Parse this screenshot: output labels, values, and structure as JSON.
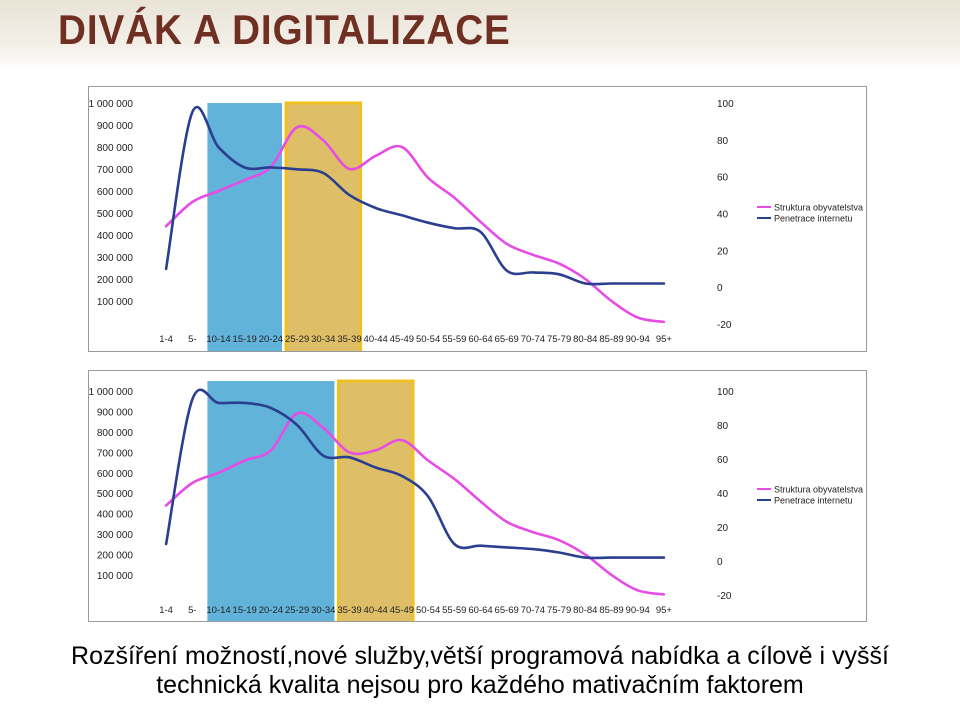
{
  "slide": {
    "title": "DIVÁK A DIGITALIZACE",
    "caption_line1": "Rozšíření možností,nové služby,větší programová nabídka a cílově i vyšší",
    "caption_line2": "technická kvalita nejsou pro každého mativačním faktorem"
  },
  "colors": {
    "title": "#6f2f22",
    "population_line": "#e64ce6",
    "internet_line": "#2a3f8f",
    "blue_highlight": "#5aafd8",
    "gold_highlight": "#d8b44e",
    "gold_border": "#f0c020"
  },
  "chart_data": [
    {
      "type": "line",
      "categories": [
        "1-4",
        "5-9",
        "10-14",
        "15-19",
        "20-24",
        "25-29",
        "30-34",
        "35-39",
        "40-44",
        "45-49",
        "50-54",
        "55-59",
        "60-64",
        "65-69",
        "70-74",
        "75-79",
        "80-84",
        "85-89",
        "90-94",
        "95+"
      ],
      "category_labels_visible": [
        "1-4",
        "5-",
        "10-14",
        "15-19",
        "20-24",
        "25-29",
        "30-34",
        "35-39",
        "40-44",
        "45-49",
        "50-54",
        "55-59",
        "60-64",
        "65-69",
        "70-74",
        "75-79",
        "80-84",
        "85-89",
        "90-94",
        "95+"
      ],
      "y_left": {
        "range": [
          0,
          1000000
        ],
        "ticks": [
          100000,
          200000,
          300000,
          400000,
          500000,
          600000,
          700000,
          800000,
          900000,
          1000000
        ],
        "tick_labels": [
          "100 000",
          "200 000",
          "300 000",
          "400 000",
          "500 000",
          "600 000",
          "700 000",
          "800 000",
          "900 000",
          "1 000 000"
        ]
      },
      "y_right": {
        "range": [
          -20,
          100
        ],
        "ticks": [
          -20,
          0,
          20,
          40,
          60,
          80,
          100
        ],
        "tick_labels": [
          "-20",
          "0",
          "20",
          "40",
          "60",
          "80",
          "100"
        ]
      },
      "legend": [
        "Struktura obyvatelstva",
        "Penetrace internetu"
      ],
      "legend_position": "right",
      "highlights": [
        {
          "from_category": "10-14",
          "to_category": "20-24",
          "color": "blue"
        },
        {
          "from_category": "25-29",
          "to_category": "35-39",
          "color": "gold"
        }
      ],
      "series": [
        {
          "name": "Struktura obyvatelstva",
          "axis": "left",
          "color": "#e64ce6",
          "values": [
            440000,
            550000,
            600000,
            650000,
            710000,
            890000,
            830000,
            700000,
            760000,
            800000,
            660000,
            570000,
            460000,
            360000,
            310000,
            270000,
            200000,
            100000,
            25000,
            5000
          ]
        },
        {
          "name": "Penetrace internetu",
          "axis": "right",
          "color": "#2a3f8f",
          "values": [
            10,
            95,
            76,
            65,
            65,
            64,
            62,
            50,
            43,
            39,
            35,
            32,
            30,
            9,
            8,
            7,
            2,
            2,
            2,
            2
          ]
        }
      ]
    },
    {
      "type": "line",
      "categories": [
        "1-4",
        "5-9",
        "10-14",
        "15-19",
        "20-24",
        "25-29",
        "30-34",
        "35-39",
        "40-44",
        "45-49",
        "50-54",
        "55-59",
        "60-64",
        "65-69",
        "70-74",
        "75-79",
        "80-84",
        "85-89",
        "90-94",
        "95+"
      ],
      "category_labels_visible": [
        "1-4",
        "5-",
        "10-14",
        "15-19",
        "20-24",
        "25-29",
        "30-34",
        "35-39",
        "40-44",
        "45-49",
        "50-54",
        "55-59",
        "60-64",
        "65-69",
        "70-74",
        "75-79",
        "80-84",
        "85-89",
        "90-94",
        "95+"
      ],
      "y_left": {
        "range": [
          0,
          1000000
        ],
        "ticks": [
          100000,
          200000,
          300000,
          400000,
          500000,
          600000,
          700000,
          800000,
          900000,
          1000000
        ],
        "tick_labels": [
          "100 000",
          "200 000",
          "300 000",
          "400 000",
          "500 000",
          "600 000",
          "700 000",
          "800 000",
          "900 000",
          "1 000 000"
        ]
      },
      "y_right": {
        "range": [
          -20,
          100
        ],
        "ticks": [
          -20,
          0,
          20,
          40,
          60,
          80,
          100
        ],
        "tick_labels": [
          "-20",
          "0",
          "20",
          "40",
          "60",
          "80",
          "100"
        ]
      },
      "legend": [
        "Struktura obyvatelstva",
        "Penetrace internetu"
      ],
      "legend_position": "right",
      "highlights": [
        {
          "from_category": "10-14",
          "to_category": "30-34",
          "color": "blue"
        },
        {
          "from_category": "35-39",
          "to_category": "45-49",
          "color": "gold"
        }
      ],
      "series": [
        {
          "name": "Struktura obyvatelstva",
          "axis": "left",
          "color": "#e64ce6",
          "values": [
            440000,
            550000,
            600000,
            660000,
            710000,
            890000,
            820000,
            700000,
            710000,
            760000,
            660000,
            570000,
            460000,
            360000,
            310000,
            270000,
            200000,
            100000,
            25000,
            5000
          ]
        },
        {
          "name": "Penetrace internetu",
          "axis": "right",
          "color": "#2a3f8f",
          "values": [
            10,
            95,
            93,
            93,
            90,
            80,
            62,
            61,
            55,
            50,
            38,
            10,
            9,
            8,
            7,
            5,
            2,
            2,
            2,
            2
          ]
        }
      ]
    }
  ]
}
